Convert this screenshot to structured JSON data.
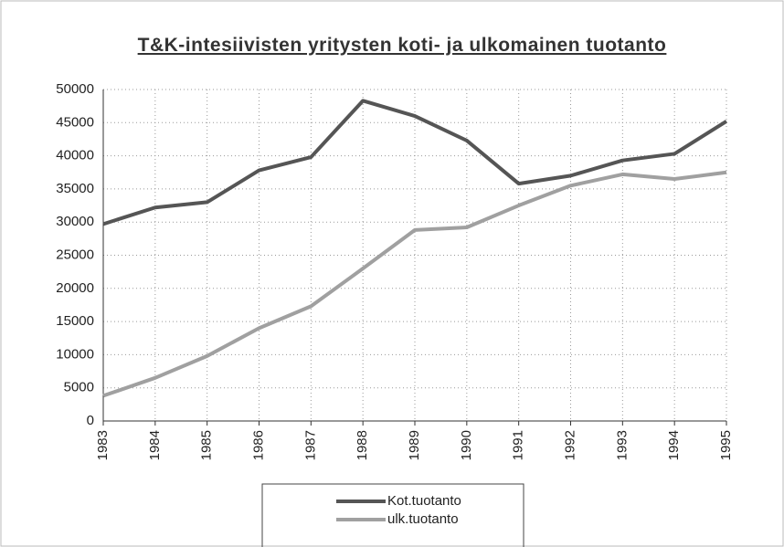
{
  "chart_data": {
    "type": "line",
    "title": "T&K-intesiivisten yritysten koti- ja ulkomainen tuotanto",
    "categories": [
      "1983",
      "1984",
      "1985",
      "1986",
      "1987",
      "1988",
      "1989",
      "1990",
      "1991",
      "1992",
      "1993",
      "1994",
      "1995"
    ],
    "series": [
      {
        "name": "Kot.tuotanto",
        "color": "#555555",
        "values": [
          29700,
          32200,
          33000,
          37800,
          39800,
          48300,
          46000,
          42300,
          35800,
          37000,
          39300,
          40300,
          45200
        ]
      },
      {
        "name": "ulk.tuotanto",
        "color": "#a0a0a0",
        "values": [
          3800,
          6500,
          9800,
          14000,
          17300,
          23000,
          28800,
          29200,
          32500,
          35500,
          37200,
          36500,
          37500
        ]
      }
    ],
    "ylim": [
      0,
      50000
    ],
    "yticks": [
      0,
      5000,
      10000,
      15000,
      20000,
      25000,
      30000,
      35000,
      40000,
      45000,
      50000
    ],
    "grid": true,
    "legend": "bottom"
  }
}
